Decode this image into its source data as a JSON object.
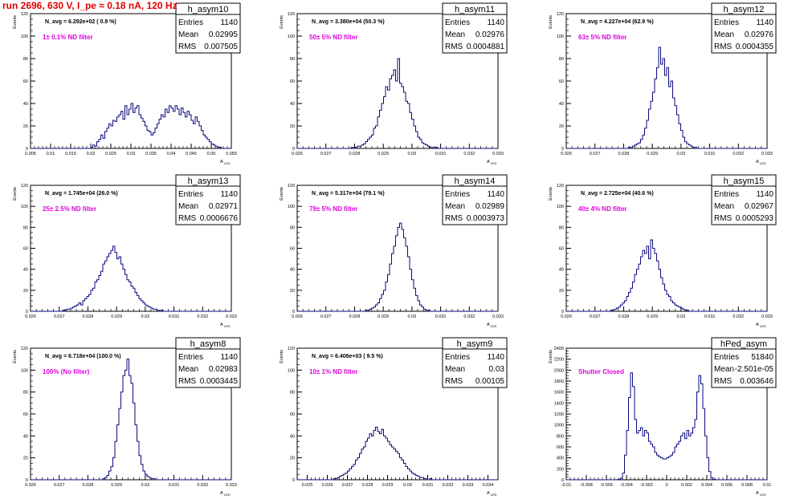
{
  "page": {
    "run_title": "run 2696,   630 V, I_pe ≈ 0.18 nA, 120 Hz",
    "colors": {
      "hist": "#0a0a80",
      "annotation": "#e000e0",
      "title": "#e00000",
      "axis": "#000000"
    }
  },
  "chart_data": [
    {
      "type": "histogram",
      "name": "h_asym10",
      "stats": {
        "entries": "1140",
        "mean": "0.02995",
        "rms": "0.007505"
      },
      "n_avg_text": "N_avg = 6.292e+02 ( 0.9 %)",
      "filter_text": "1± 0.1% ND filter",
      "ylabel": "Events",
      "xlabel": "A_LED",
      "xlim": [
        0.005,
        0.055
      ],
      "ylim": [
        0,
        120
      ],
      "xticks": [
        "0.005",
        "0.01",
        "0.015",
        "0.02",
        "0.025",
        "0.03",
        "0.035",
        "0.04",
        "0.045",
        "0.05",
        "0.055"
      ],
      "yticks": [
        "0",
        "20",
        "40",
        "60",
        "80",
        "100",
        "120"
      ],
      "values": [
        0,
        0,
        0,
        0,
        0,
        0,
        0,
        0,
        0,
        0,
        0,
        0,
        0,
        0,
        0,
        0,
        0,
        0,
        0,
        0,
        0,
        0,
        0,
        0,
        0,
        0,
        0,
        0,
        0,
        0,
        1,
        3,
        2,
        6,
        8,
        12,
        9,
        15,
        18,
        22,
        20,
        25,
        24,
        28,
        30,
        33,
        26,
        38,
        30,
        35,
        40,
        32,
        36,
        38,
        30,
        27,
        24,
        20,
        16,
        15,
        12,
        14,
        18,
        22,
        26,
        30,
        28,
        35,
        32,
        38,
        36,
        33,
        38,
        35,
        30,
        36,
        32,
        28,
        33,
        30,
        25,
        22,
        28,
        24,
        20,
        16,
        12,
        10,
        8,
        6,
        4,
        3,
        2,
        1,
        1,
        0,
        0,
        0,
        0,
        0
      ]
    },
    {
      "type": "histogram",
      "name": "h_asym11",
      "stats": {
        "entries": "1140",
        "mean": "0.02976",
        "rms": "0.0004881"
      },
      "n_avg_text": "N_avg = 3.380e+04 (50.3 %)",
      "filter_text": "50± 5% ND filter",
      "ylabel": "Events",
      "xlabel": "A_LED",
      "xlim": [
        0.026,
        0.033
      ],
      "ylim": [
        0,
        120
      ],
      "xticks": [
        "0.026",
        "0.027",
        "0.028",
        "0.029",
        "0.03",
        "0.031",
        "0.032",
        "0.033"
      ],
      "yticks": [
        "0",
        "20",
        "40",
        "60",
        "80",
        "100",
        "120"
      ],
      "values": [
        0,
        0,
        0,
        0,
        0,
        0,
        0,
        0,
        0,
        0,
        0,
        0,
        0,
        0,
        0,
        0,
        0,
        0,
        0,
        0,
        0,
        0,
        0,
        0,
        0,
        0,
        0,
        1,
        0,
        1,
        2,
        2,
        3,
        4,
        6,
        8,
        10,
        12,
        18,
        20,
        28,
        34,
        40,
        46,
        55,
        52,
        62,
        65,
        70,
        60,
        80,
        58,
        55,
        50,
        42,
        40,
        32,
        26,
        20,
        15,
        10,
        8,
        5,
        4,
        3,
        2,
        1,
        1,
        0,
        1,
        0,
        0,
        0,
        0,
        0,
        0,
        0,
        0,
        0,
        0,
        0,
        0,
        0,
        0,
        0,
        0,
        0,
        0,
        0,
        0,
        0,
        0,
        0,
        0,
        0,
        0,
        0,
        0,
        0,
        0
      ]
    },
    {
      "type": "histogram",
      "name": "h_asym12",
      "stats": {
        "entries": "1140",
        "mean": "0.02976",
        "rms": "0.0004355"
      },
      "n_avg_text": "N_avg = 4.227e+04 (62.9 %)",
      "filter_text": "63± 5% ND filter",
      "ylabel": "Events",
      "xlabel": "A_LED",
      "xlim": [
        0.026,
        0.033
      ],
      "ylim": [
        0,
        120
      ],
      "xticks": [
        "0.026",
        "0.027",
        "0.028",
        "0.029",
        "0.03",
        "0.031",
        "0.032",
        "0.033"
      ],
      "yticks": [
        "0",
        "20",
        "40",
        "60",
        "80",
        "100",
        "120"
      ],
      "values": [
        0,
        0,
        0,
        0,
        0,
        0,
        0,
        0,
        0,
        0,
        0,
        0,
        0,
        0,
        0,
        0,
        0,
        0,
        0,
        0,
        0,
        0,
        0,
        0,
        0,
        0,
        0,
        0,
        0,
        0,
        0,
        1,
        1,
        2,
        3,
        4,
        5,
        8,
        12,
        18,
        25,
        35,
        42,
        50,
        62,
        72,
        90,
        75,
        80,
        65,
        72,
        55,
        60,
        45,
        38,
        30,
        22,
        16,
        10,
        6,
        4,
        3,
        2,
        1,
        1,
        0,
        0,
        0,
        0,
        0,
        0,
        0,
        0,
        0,
        0,
        0,
        0,
        0,
        0,
        0,
        0,
        0,
        0,
        0,
        0,
        0,
        0,
        0,
        0,
        0,
        0,
        0,
        0,
        0,
        0,
        0,
        0,
        0,
        0,
        0
      ]
    },
    {
      "type": "histogram",
      "name": "h_asym13",
      "stats": {
        "entries": "1140",
        "mean": "0.02971",
        "rms": "0.0006676"
      },
      "n_avg_text": "N_avg = 1.745e+04 (26.0 %)",
      "filter_text": "25± 2.5% ND filter",
      "ylabel": "Events",
      "xlabel": "A_LED",
      "xlim": [
        0.026,
        0.033
      ],
      "ylim": [
        0,
        120
      ],
      "xticks": [
        "0.026",
        "0.027",
        "0.028",
        "0.029",
        "0.03",
        "0.031",
        "0.032",
        "0.033"
      ],
      "yticks": [
        "0",
        "20",
        "40",
        "60",
        "80",
        "100",
        "120"
      ],
      "values": [
        0,
        0,
        0,
        0,
        0,
        0,
        0,
        0,
        0,
        0,
        0,
        0,
        0,
        0,
        0,
        0,
        1,
        1,
        2,
        2,
        3,
        4,
        5,
        6,
        8,
        6,
        10,
        12,
        14,
        16,
        20,
        22,
        28,
        30,
        34,
        38,
        45,
        48,
        52,
        55,
        58,
        62,
        56,
        50,
        52,
        45,
        40,
        35,
        30,
        28,
        24,
        22,
        18,
        15,
        12,
        10,
        8,
        6,
        5,
        4,
        3,
        2,
        2,
        1,
        1,
        1,
        0,
        0,
        0,
        0,
        0,
        0,
        0,
        0,
        0,
        0,
        0,
        0,
        0,
        0,
        0,
        0,
        0,
        0,
        0,
        0,
        0,
        0,
        0,
        0,
        0,
        0,
        0,
        0,
        0,
        0,
        0,
        0,
        0,
        0
      ]
    },
    {
      "type": "histogram",
      "name": "h_asym14",
      "stats": {
        "entries": "1140",
        "mean": "0.02989",
        "rms": "0.0003973"
      },
      "n_avg_text": "N_avg = 5.317e+04 (79.1 %)",
      "filter_text": "79± 5% ND filter",
      "ylabel": "Events",
      "xlabel": "A_LED",
      "xlim": [
        0.026,
        0.033
      ],
      "ylim": [
        0,
        120
      ],
      "xticks": [
        "0.026",
        "0.027",
        "0.028",
        "0.029",
        "0.03",
        "0.031",
        "0.032",
        "0.033"
      ],
      "yticks": [
        "0",
        "20",
        "40",
        "60",
        "80",
        "100",
        "120"
      ],
      "values": [
        0,
        0,
        0,
        0,
        0,
        0,
        0,
        0,
        0,
        0,
        0,
        0,
        0,
        0,
        0,
        0,
        0,
        0,
        0,
        0,
        0,
        0,
        0,
        0,
        0,
        0,
        0,
        0,
        0,
        0,
        0,
        0,
        0,
        0,
        1,
        1,
        2,
        3,
        4,
        6,
        8,
        12,
        16,
        20,
        28,
        35,
        45,
        55,
        62,
        72,
        80,
        84,
        78,
        70,
        62,
        52,
        40,
        30,
        22,
        15,
        10,
        6,
        4,
        2,
        1,
        1,
        0,
        0,
        0,
        0,
        0,
        0,
        0,
        0,
        0,
        0,
        0,
        0,
        0,
        0,
        0,
        0,
        0,
        0,
        0,
        0,
        0,
        0,
        0,
        0,
        0,
        0,
        0,
        0,
        0,
        0,
        0,
        0,
        0,
        0
      ]
    },
    {
      "type": "histogram",
      "name": "h_asym15",
      "stats": {
        "entries": "1140",
        "mean": "0.02967",
        "rms": "0.0005293"
      },
      "n_avg_text": "N_avg = 2.725e+04 (40.6 %)",
      "filter_text": "40± 4% ND filter",
      "ylabel": "Events",
      "xlabel": "A_LED",
      "xlim": [
        0.026,
        0.033
      ],
      "ylim": [
        0,
        120
      ],
      "xticks": [
        "0.026",
        "0.027",
        "0.028",
        "0.029",
        "0.03",
        "0.031",
        "0.032",
        "0.033"
      ],
      "yticks": [
        "0",
        "20",
        "40",
        "60",
        "80",
        "100",
        "120"
      ],
      "values": [
        0,
        0,
        0,
        0,
        0,
        0,
        0,
        0,
        0,
        0,
        0,
        0,
        0,
        0,
        0,
        0,
        0,
        0,
        0,
        0,
        0,
        0,
        1,
        1,
        2,
        3,
        4,
        6,
        8,
        10,
        14,
        18,
        22,
        28,
        35,
        40,
        45,
        52,
        58,
        55,
        62,
        50,
        68,
        60,
        55,
        48,
        40,
        32,
        26,
        20,
        16,
        14,
        10,
        8,
        6,
        5,
        4,
        3,
        2,
        1,
        1,
        0,
        0,
        0,
        0,
        0,
        0,
        0,
        0,
        0,
        0,
        0,
        0,
        0,
        0,
        0,
        0,
        0,
        0,
        0,
        0,
        0,
        0,
        0,
        0,
        0,
        0,
        0,
        0,
        0,
        0,
        0,
        0,
        0,
        0,
        0,
        0,
        0,
        0,
        0
      ]
    },
    {
      "type": "histogram",
      "name": "h_asym8",
      "stats": {
        "entries": "1140",
        "mean": "0.02983",
        "rms": "0.0003445"
      },
      "n_avg_text": "N_avg = 6.718e+04 (100.0 %)",
      "filter_text": "100% (No filter)",
      "ylabel": "Events",
      "xlabel": "A_LED",
      "xlim": [
        0.026,
        0.033
      ],
      "ylim": [
        0,
        120
      ],
      "xticks": [
        "0.026",
        "0.027",
        "0.028",
        "0.029",
        "0.03",
        "0.031",
        "0.032",
        "0.033"
      ],
      "yticks": [
        "0",
        "20",
        "40",
        "60",
        "80",
        "100",
        "120"
      ],
      "values": [
        0,
        0,
        0,
        0,
        0,
        0,
        0,
        0,
        0,
        0,
        0,
        0,
        0,
        0,
        0,
        0,
        0,
        0,
        0,
        0,
        0,
        0,
        0,
        0,
        0,
        0,
        0,
        0,
        0,
        0,
        0,
        0,
        0,
        0,
        0,
        0,
        1,
        2,
        4,
        8,
        12,
        20,
        35,
        50,
        65,
        80,
        95,
        100,
        110,
        95,
        88,
        70,
        50,
        35,
        22,
        14,
        8,
        5,
        3,
        2,
        1,
        1,
        0,
        0,
        0,
        0,
        0,
        0,
        0,
        0,
        0,
        0,
        0,
        0,
        0,
        0,
        0,
        0,
        0,
        0,
        0,
        0,
        0,
        0,
        0,
        0,
        0,
        0,
        0,
        0,
        0,
        0,
        0,
        0,
        0,
        0,
        0,
        0,
        0,
        0
      ]
    },
    {
      "type": "histogram",
      "name": "h_asym9",
      "stats": {
        "entries": "1140",
        "mean": "0.03",
        "rms": "0.00105"
      },
      "n_avg_text": "N_avg = 6.406e+03 ( 9.5 %)",
      "filter_text": "10± 1% ND filter",
      "ylabel": "Events",
      "xlabel": "A_LED",
      "xlim": [
        0.0245,
        0.0345
      ],
      "ylim": [
        0,
        120
      ],
      "xticks": [
        "0.025",
        "0.026",
        "0.027",
        "0.028",
        "0.029",
        "0.03",
        "0.031",
        "0.032",
        "0.033",
        "0.034"
      ],
      "yticks": [
        "0",
        "20",
        "40",
        "60",
        "80",
        "100",
        "120"
      ],
      "values": [
        0,
        0,
        0,
        0,
        0,
        0,
        0,
        0,
        0,
        0,
        0,
        0,
        0,
        0,
        0,
        0,
        0,
        0,
        1,
        1,
        2,
        3,
        4,
        5,
        6,
        8,
        10,
        12,
        14,
        18,
        20,
        24,
        28,
        30,
        35,
        38,
        42,
        40,
        45,
        48,
        44,
        42,
        46,
        40,
        38,
        35,
        32,
        30,
        28,
        26,
        24,
        20,
        18,
        15,
        12,
        10,
        8,
        6,
        5,
        4,
        3,
        2,
        2,
        1,
        1,
        0,
        1,
        0,
        0,
        0,
        0,
        0,
        0,
        0,
        0,
        0,
        0,
        0,
        0,
        0,
        0,
        0,
        0,
        0,
        0,
        0,
        0,
        0,
        0,
        0,
        0,
        0,
        0,
        0,
        0,
        0,
        0,
        0,
        0,
        0
      ]
    },
    {
      "type": "histogram",
      "name": "hPed_asym",
      "stats": {
        "entries": "51840",
        "mean": "-2.501e-05",
        "rms": "0.003646"
      },
      "n_avg_text": "",
      "filter_text": "Shutter Closed",
      "ylabel": "Events",
      "xlabel": "A_LED",
      "xlim": [
        -0.01,
        0.01
      ],
      "ylim": [
        0,
        2400
      ],
      "xticks": [
        "-0.01",
        "-0.008",
        "-0.006",
        "-0.004",
        "-0.002",
        "0",
        "0.002",
        "0.004",
        "0.006",
        "0.008",
        "0.01"
      ],
      "yticks": [
        "0",
        "200",
        "400",
        "600",
        "800",
        "1000",
        "1200",
        "1400",
        "1600",
        "1800",
        "2000",
        "2200",
        "2400"
      ],
      "values": [
        0,
        0,
        0,
        0,
        0,
        0,
        0,
        0,
        0,
        0,
        0,
        0,
        0,
        0,
        0,
        0,
        0,
        0,
        0,
        0,
        0,
        0,
        0,
        0,
        0,
        2,
        8,
        30,
        120,
        450,
        900,
        1500,
        1950,
        1700,
        1100,
        850,
        900,
        950,
        800,
        900,
        850,
        700,
        650,
        600,
        500,
        450,
        420,
        400,
        380,
        380,
        400,
        420,
        450,
        500,
        600,
        650,
        700,
        800,
        850,
        750,
        900,
        800,
        850,
        950,
        1100,
        1600,
        1900,
        1750,
        1300,
        800,
        400,
        150,
        40,
        10,
        2,
        0,
        0,
        0,
        0,
        0,
        0,
        0,
        0,
        0,
        0,
        0,
        0,
        0,
        0,
        0,
        0,
        0,
        0,
        0,
        0,
        0,
        0,
        0,
        0,
        0
      ]
    }
  ]
}
